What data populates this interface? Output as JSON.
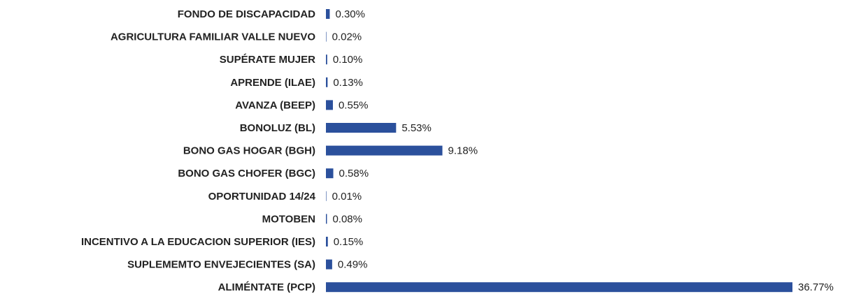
{
  "chart_data": {
    "type": "bar",
    "orientation": "horizontal",
    "color": "#2b509c",
    "categories": [
      "FONDO DE DISCAPACIDAD",
      "AGRICULTURA FAMILIAR VALLE NUEVO",
      "SUPÉRATE MUJER",
      "APRENDE (ILAE)",
      "AVANZA (BEEP)",
      "BONOLUZ (BL)",
      "BONO GAS HOGAR (BGH)",
      "BONO GAS CHOFER (BGC)",
      "OPORTUNIDAD 14/24",
      "MOTOBEN",
      "INCENTIVO A LA EDUCACION SUPERIOR (IES)",
      "SUPLEMEMTO ENVEJECIENTES (SA)",
      "ALIMÉNTATE (PCP)"
    ],
    "values": [
      0.3,
      0.02,
      0.1,
      0.13,
      0.55,
      5.53,
      9.18,
      0.58,
      0.01,
      0.08,
      0.15,
      0.49,
      36.77
    ],
    "value_labels": [
      "0.30%",
      "0.02%",
      "0.10%",
      "0.13%",
      "0.55%",
      "5.53%",
      "9.18%",
      "0.58%",
      "0.01%",
      "0.08%",
      "0.15%",
      "0.49%",
      "36.77%"
    ]
  }
}
